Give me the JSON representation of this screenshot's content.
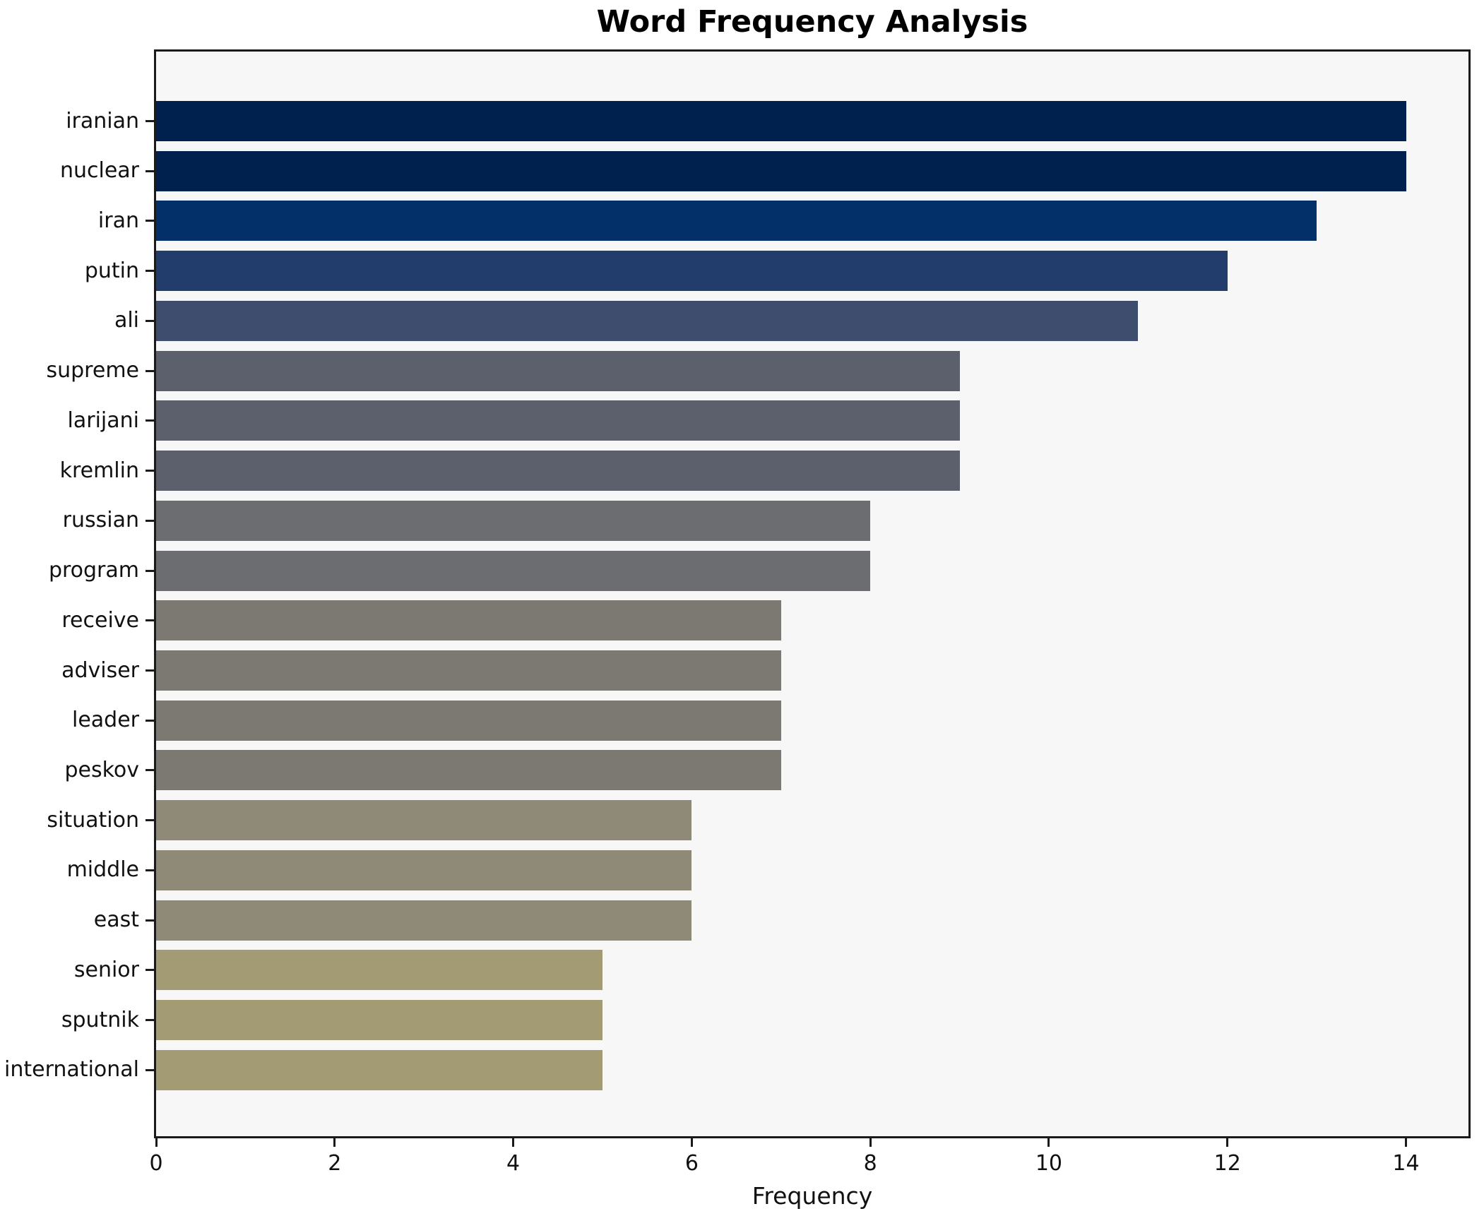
{
  "title": "Word Frequency Analysis",
  "chart_data": {
    "type": "bar",
    "orientation": "horizontal",
    "title": "Word Frequency Analysis",
    "xlabel": "Frequency",
    "ylabel": "",
    "xlim": [
      0,
      14.7
    ],
    "xticks": [
      0,
      2,
      4,
      6,
      8,
      10,
      12,
      14
    ],
    "grid": false,
    "legend_position": "none",
    "colormap": "cividis",
    "categories": [
      "iranian",
      "nuclear",
      "iran",
      "putin",
      "ali",
      "supreme",
      "larijani",
      "kremlin",
      "russian",
      "program",
      "receive",
      "adviser",
      "leader",
      "peskov",
      "situation",
      "middle",
      "east",
      "senior",
      "sputnik",
      "international"
    ],
    "values": [
      14,
      14,
      13,
      12,
      11,
      9,
      9,
      9,
      8,
      8,
      7,
      7,
      7,
      7,
      6,
      6,
      6,
      5,
      5,
      5
    ],
    "bar_colors": [
      "#00204D",
      "#00204D",
      "#04306A",
      "#223C6C",
      "#3E4C6E",
      "#5C5F6C",
      "#5C5F6C",
      "#5C5F6C",
      "#6C6D70",
      "#6C6D70",
      "#7B7972",
      "#7B7972",
      "#7B7972",
      "#7B7972",
      "#8F8978",
      "#8F8978",
      "#8F8978",
      "#A39B74",
      "#A39B74",
      "#A39B74"
    ],
    "plot_background": "#F7F7F7",
    "figure_background": "#FFFFFF",
    "spine_color": "#1A1A1A",
    "text_color": "#111111"
  }
}
